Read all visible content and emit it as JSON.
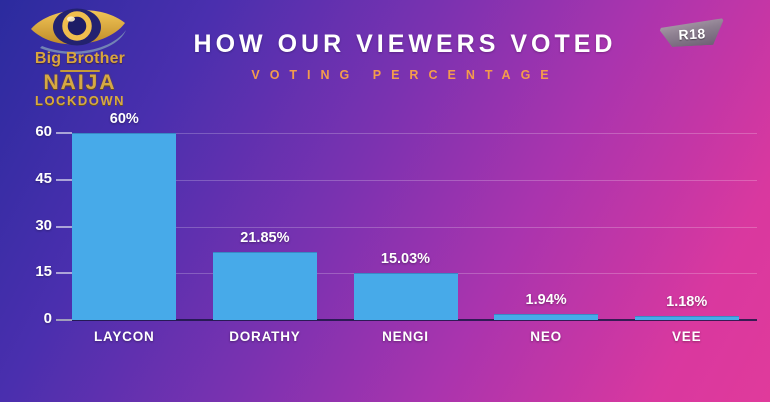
{
  "logo": {
    "brand": "Big Brother",
    "name": "NAIJA",
    "edition": "LOCKDOWN"
  },
  "header": {
    "title": "HOW OUR VIEWERS VOTED",
    "subtitle": "VOTING PERCENTAGE"
  },
  "rating_badge": {
    "label": "R18"
  },
  "chart_data": {
    "type": "bar",
    "title": "HOW OUR VIEWERS VOTED",
    "subtitle": "VOTING PERCENTAGE",
    "categories": [
      "LAYCON",
      "DORATHY",
      "NENGI",
      "NEO",
      "VEE"
    ],
    "values": [
      60,
      21.85,
      15.03,
      1.94,
      1.18
    ],
    "value_labels": [
      "60%",
      "21.85%",
      "15.03%",
      "1.94%",
      "1.18%"
    ],
    "y_ticks": [
      0,
      15,
      30,
      45,
      60
    ],
    "ylim": [
      0,
      60
    ],
    "grid": true,
    "legend": false,
    "xlabel": "",
    "ylabel": ""
  },
  "colors": {
    "background_top_left": "#2B2B9E",
    "background_mid": "#7A32B0",
    "background_bottom_right": "#DB38A6",
    "bar": "#47AAE9",
    "title_text": "#FFFFFF",
    "subtitle_text": "#F49C4B",
    "axis_text": "#FFFFFF",
    "logo_gold": "#D9A53E"
  }
}
